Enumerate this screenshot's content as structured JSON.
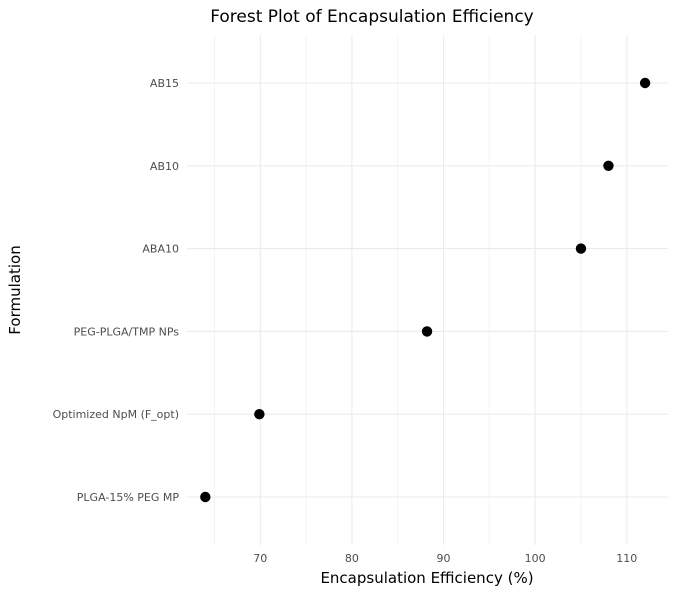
{
  "chart_data": {
    "type": "scatter",
    "title": "Forest Plot of Encapsulation Efficiency",
    "xlabel": "Encapsulation Efficiency (%)",
    "ylabel": "Formulation",
    "xlim": [
      62,
      114.5
    ],
    "xticks": [
      70,
      80,
      90,
      100,
      110
    ],
    "categories": [
      "PLGA-15% PEG MP",
      "Optimized NpM (F_opt)",
      "PEG-PLGA/TMP NPs",
      "ABA10",
      "AB10",
      "AB15"
    ],
    "values": [
      64.0,
      69.9,
      88.2,
      105.0,
      108.0,
      112.0
    ],
    "grid": true,
    "legend": "none"
  }
}
